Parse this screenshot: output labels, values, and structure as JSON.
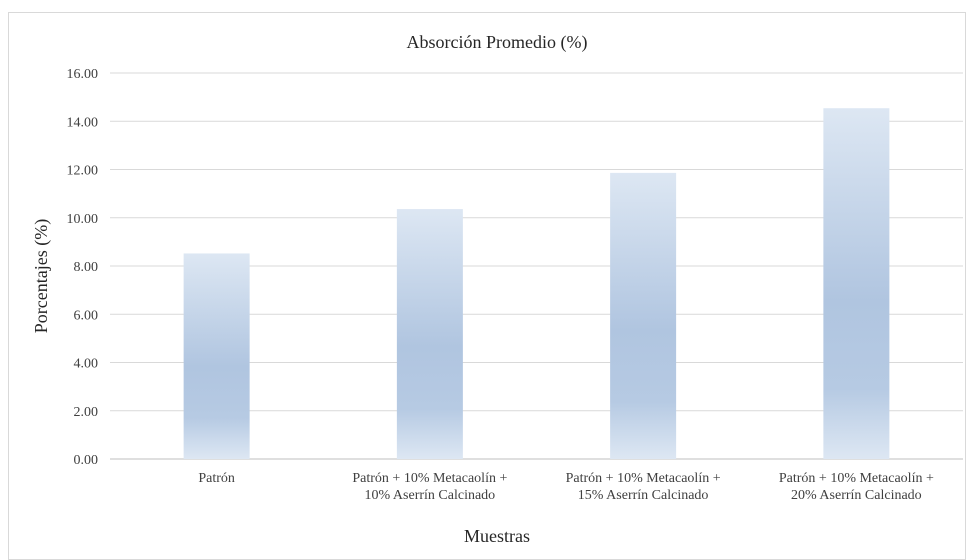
{
  "chart_data": {
    "type": "bar",
    "title": "Absorción Promedio (%)",
    "xlabel": "Muestras",
    "ylabel": "Porcentajes (%)",
    "ylim": [
      0,
      16
    ],
    "yticks": [
      "0.00",
      "2.00",
      "4.00",
      "6.00",
      "8.00",
      "10.00",
      "12.00",
      "14.00",
      "16.00"
    ],
    "categories": [
      [
        "Patrón"
      ],
      [
        "Patrón + 10% Metacaolín +",
        "10% Aserrín Calcinado"
      ],
      [
        "Patrón + 10% Metacaolín +",
        "15% Aserrín Calcinado"
      ],
      [
        "Patrón + 10% Metacaolín +",
        "20% Aserrín Calcinado"
      ]
    ],
    "values": [
      8.52,
      10.36,
      11.86,
      14.54
    ],
    "grid": true,
    "legend": "none",
    "colors": {
      "bar_light": "#dbe5f1",
      "bar_dark": "#b1c7e1",
      "grid": "#d9d9d9",
      "axis": "#bfbfbf"
    }
  }
}
